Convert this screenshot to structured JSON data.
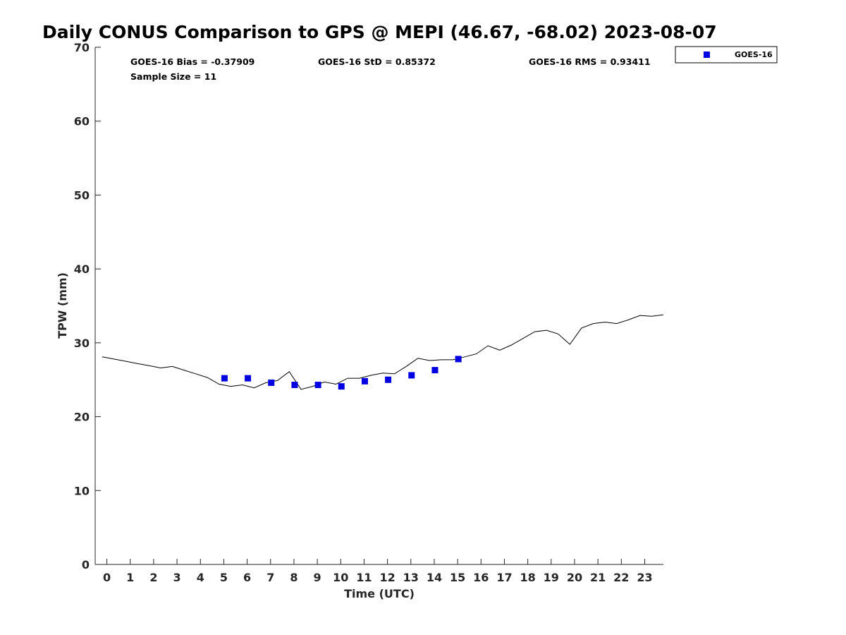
{
  "chart_data": {
    "type": "scatter",
    "title": "Daily CONUS Comparison to GPS @ MEPI (46.67, -68.02) 2023-08-07",
    "xlabel": "Time (UTC)",
    "ylabel": "TPW (mm)",
    "xlim": [
      -0.5,
      23.8
    ],
    "ylim": [
      0,
      70
    ],
    "xticks": [
      0,
      1,
      2,
      3,
      4,
      5,
      6,
      7,
      8,
      9,
      10,
      11,
      12,
      13,
      14,
      15,
      16,
      17,
      18,
      19,
      20,
      21,
      22,
      23
    ],
    "xtick_labels": [
      "0",
      "1",
      "2",
      "3",
      "4",
      "5",
      "6",
      "7",
      "8",
      "9",
      "10",
      "11",
      "12",
      "13",
      "14",
      "15",
      "16",
      "17",
      "18",
      "19",
      "20",
      "21",
      "22",
      "23"
    ],
    "yticks": [
      0,
      10,
      20,
      30,
      40,
      50,
      60,
      70
    ],
    "ytick_labels": [
      "0",
      "10",
      "20",
      "30",
      "40",
      "50",
      "60",
      "70"
    ],
    "grid": false,
    "legend_position": "top-right",
    "stats": {
      "bias": "GOES-16 Bias = -0.37909",
      "std": "GOES-16 StD = 0.85372",
      "rms": "GOES-16 RMS = 0.93411",
      "sample_size": "Sample Size = 11"
    },
    "series": [
      {
        "name": "GOES-16",
        "type": "scatter",
        "color": "#0000e0",
        "marker": "square",
        "x": [
          5.03,
          6.03,
          7.03,
          8.03,
          9.03,
          10.03,
          11.03,
          12.03,
          13.03,
          14.03,
          15.03
        ],
        "y": [
          25.2,
          25.2,
          24.6,
          24.3,
          24.3,
          24.1,
          24.8,
          25.0,
          25.6,
          26.3,
          27.8
        ]
      },
      {
        "type": "line",
        "color": "#000000",
        "x": [
          -0.2,
          0.3,
          0.8,
          1.3,
          1.8,
          2.3,
          2.8,
          3.3,
          3.8,
          4.3,
          4.8,
          5.3,
          5.8,
          6.3,
          6.8,
          7.3,
          7.8,
          8.3,
          8.8,
          9.3,
          9.8,
          10.3,
          10.8,
          11.3,
          11.8,
          12.3,
          12.8,
          13.3,
          13.8,
          14.3,
          14.8,
          15.3,
          15.8,
          16.3,
          16.8,
          17.3,
          17.8,
          18.3,
          18.8,
          19.3,
          19.8,
          20.3,
          20.8,
          21.3,
          21.8,
          22.3,
          22.8,
          23.3,
          23.8
        ],
        "y": [
          28.1,
          27.8,
          27.5,
          27.2,
          26.9,
          26.6,
          26.8,
          26.3,
          25.8,
          25.3,
          24.4,
          24.1,
          24.3,
          23.9,
          24.6,
          24.9,
          26.1,
          23.7,
          24.1,
          24.7,
          24.4,
          25.2,
          25.2,
          25.6,
          25.9,
          25.8,
          26.8,
          27.9,
          27.6,
          27.7,
          27.7,
          28.1,
          28.5,
          29.6,
          29.0,
          29.7,
          30.6,
          31.5,
          31.7,
          31.2,
          29.8,
          32.0,
          32.6,
          32.8,
          32.6,
          33.1,
          33.7,
          33.6,
          33.8
        ]
      }
    ]
  }
}
